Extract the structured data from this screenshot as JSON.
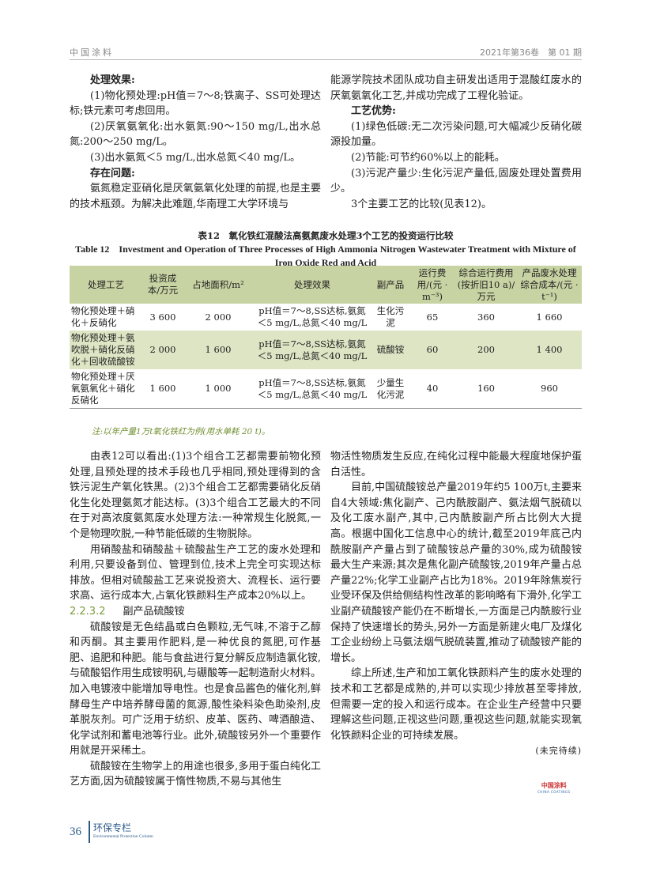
{
  "header": {
    "journal": "中国涂料",
    "issue": "2021年第36卷　第 01 期"
  },
  "top_left": {
    "h1": "处理效果:",
    "p1": "(1)物化预处理:pH值＝7～8;铁离子、SS可处理达标;铁元素可考虑回用。",
    "p2": "(2)厌氧氨氧化:出水氨氮:90～150 mg/L,出水总氮:200～250 mg/L。",
    "p3": "(3)出水氨氮＜5 mg/L,出水总氮＜40 mg/L。",
    "h2": "存在问题:",
    "p4": "氨氮稳定亚硝化是厌氧氨氧化处理的前提,也是主要的技术瓶颈。为解决此难题,华南理工大学环境与"
  },
  "top_right": {
    "p0": "能源学院技术团队成功自主研发出适用于混酸红废水的厌氧氨氧化工艺,并成功完成了工程化验证。",
    "h1": "工艺优势:",
    "p1": "(1)绿色低碳:无二次污染问题,可大幅减少反硝化碳源投加量。",
    "p2": "(2)节能:可节约60%以上的能耗。",
    "p3": "(3)污泥产量少:生化污泥产量低,固废处理处置费用少。",
    "p4": "3个主要工艺的比较(见表12)。"
  },
  "table": {
    "caption_cn": "表12　氧化铁红混酸法高氨氮废水处理3个工艺的投资运行比较",
    "caption_en": "Table 12　Investment and Operation of Three Processes of High Ammonia Nitrogen Wastewater Treatment with Mixture of Iron Oxide Red and Acid",
    "headers": [
      "处理工艺",
      "投资成本/万元",
      "占地面积/m²",
      "处理效果",
      "副产品",
      "运行费用/(元 · m⁻³)",
      "综合运行费用(按折旧10 a)/万元",
      "产品废水处理综合成本/(元 · t⁻¹)"
    ],
    "rows": [
      [
        "物化预处理＋硝化＋反硝化",
        "3 600",
        "2 000",
        "pH值＝7～8,SS达标,氨氮＜5 mg/L,总氮＜40 mg/L",
        "生化污泥",
        "65",
        "360",
        "1 660"
      ],
      [
        "物化预处理＋氨吹脱＋硝化反硝化＋回收硫酸铵",
        "2 000",
        "1 600",
        "pH值＝7～8,SS达标,氨氮＜5 mg/L,总氮＜40 mg/L",
        "硫酸铵",
        "60",
        "200",
        "1 400"
      ],
      [
        "物化预处理＋厌氧氨氧化＋硝化反硝化",
        "1 600",
        "1 000",
        "pH值＝7～8,SS达标,氨氮＜5 mg/L,总氮＜40 mg/L",
        "少量生化污泥",
        "40",
        "160",
        "960"
      ]
    ],
    "note": "注:以年产量1万t氧化铁红为例(用水单耗 20 t)。",
    "colors": {
      "header": "#c8d3a3",
      "alt_row": "#dde5c4"
    }
  },
  "bottom_left": {
    "p1": "由表12可以看出:(1)3个组合工艺都需要前物化预处理,且预处理的技术手段也几乎相同,预处理得到的含铁污泥生产氧化铁黑。(2)3个组合工艺都需要硝化反硝化生化处理氨氮才能达标。(3)3个组合工艺最大的不同在于对高浓度氨氮废水处理方法:一种常规生化脱氮,一个是物理吹脱,一种节能低碳的生物脱除。",
    "p2": "用硝酸盐和硝酸盐＋硫酸盐生产工艺的废水处理和利用,只要设备到位、管理到位,技术上完全可实现达标排放。但相对硫酸盐工艺来说投资大、流程长、运行要求高、运行成本大,占氧化铁颜料生产成本20%以上。",
    "section_num": "2.2.3.2",
    "section_title": "副产品硫酸铵",
    "p3": "硫酸铵是无色结晶或白色颗粒,无气味,不溶于乙醇和丙酮。其主要用作肥料,是一种优良的氮肥,可作基肥、追肥和种肥。能与食盐进行复分解反应制造氯化铵,与硫酸铝作用生成铵明矾,与硼酸等一起制造耐火材料。加入电镀液中能增加导电性。也是食品酱色的催化剂,鲜酵母生产中培养酵母菌的氮源,酸性染料染色助染剂,皮革脱灰剂。可广泛用于纺织、皮革、医药、啤酒酿造、化学试剂和蓄电池等行业。此外,硫酸铵另外一个重要作用就是开采稀土。",
    "p4": "硫酸铵在生物学上的用途也很多,多用于蛋白纯化工艺方面,因为硫酸铵属于惰性物质,不易与其他生"
  },
  "bottom_right": {
    "p0": "物活性物质发生反应,在纯化过程中能最大程度地保护蛋白活性。",
    "p1": "目前,中国硫酸铵总产量2019年约5 100万t,主要来自4大领域:焦化副产、己内酰胺副产、氨法烟气脱硫以及化工废水副产,其中,己内酰胺副产所占比例大大提高。根据中国化工信息中心的统计,截至2019年底己内酰胺副产产量占到了硫酸铵总产量的30%,成为硫酸铵最大生产来源;其次是焦化副产硫酸铵,2019年产量占总产量22%;化学工业副产占比为18%。2019年除焦炭行业受环保及供给侧结构性改革的影响略有下滑外,化学工业副产硫酸铵产能仍在不断增长,一方面是己内酰胺行业保持了快速增长的势头,另外一方面是新建火电厂及煤化工企业纷纷上马氨法烟气脱硫装置,推动了硫酸铵产能的增长。",
    "p2": "综上所述,生产和加工氧化铁颜料产生的废水处理的技术和工艺都是成熟的,并可以实现少排放甚至零排放,但需要一定的投入和运行成本。在企业生产经营中只要理解这些问题,正视这些问题,重视这些问题,就能实现氧化铁颜料企业的可持续发展。",
    "tbc": "(未完待续)"
  },
  "logo": {
    "cn": "中国涂料",
    "en": "CHINA COATINGS"
  },
  "footer": {
    "page": "36",
    "column_cn": "环保专栏",
    "column_en": "Environmental Protection Column",
    "color": "#2a5a8a"
  }
}
